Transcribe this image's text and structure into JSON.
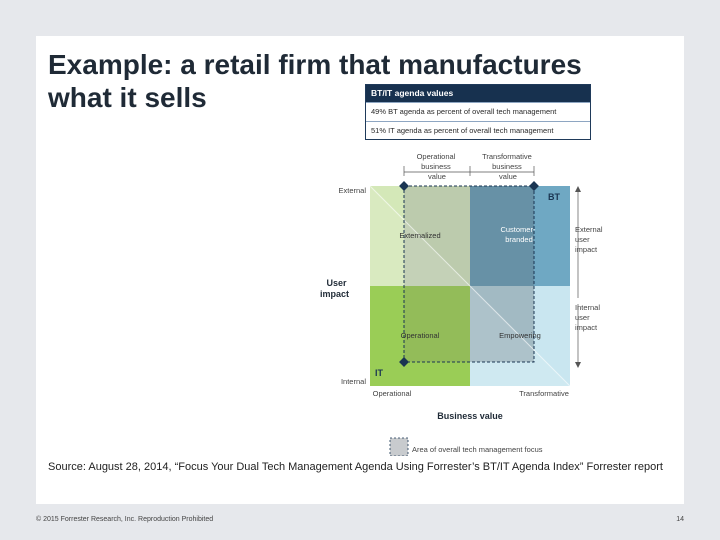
{
  "slide": {
    "title_line1": "Example: a retail firm that manufactures",
    "title_line2": "what it sells",
    "source": "Source: August 28, 2014, “Focus Your Dual Tech Management Agenda Using Forrester’s BT/IT Agenda Index” Forrester report",
    "copyright": "© 2015 Forrester Research, Inc. Reproduction Prohibited",
    "page_number": "14"
  },
  "agenda_values": {
    "heading": "BT/IT agenda values",
    "bt_row": "49% BT agenda as percent of overall tech management",
    "it_row": "51% IT agenda as percent of overall tech management"
  },
  "diagram": {
    "top_left_label": [
      "Operational",
      "business",
      "value"
    ],
    "top_right_label": [
      "Transformative",
      "business",
      "value"
    ],
    "y_top": "External",
    "y_bottom": "Internal",
    "y_axis_title": [
      "User",
      "impact"
    ],
    "x_left": "Operational",
    "x_right": "Transformative",
    "x_axis_title": "Business value",
    "right_top_label": [
      "External",
      "user",
      "impact"
    ],
    "right_bottom_label": [
      "Internal",
      "user",
      "impact"
    ],
    "bt_label": "BT",
    "it_label": "IT",
    "quadrants": {
      "externalized": "Externalized",
      "customer_branded": [
        "Customer-",
        "branded"
      ],
      "operational": "Operational",
      "empowering": "Empowering"
    },
    "focus_legend": "Area of overall tech management focus",
    "colors": {
      "green_dark": "#8cc63f",
      "green_light": "#d4e8b8",
      "blue_dark": "#6fa8c3",
      "blue_light": "#c9e6f0",
      "focus_gray": "#8f9499",
      "marker": "#1a3552"
    }
  }
}
